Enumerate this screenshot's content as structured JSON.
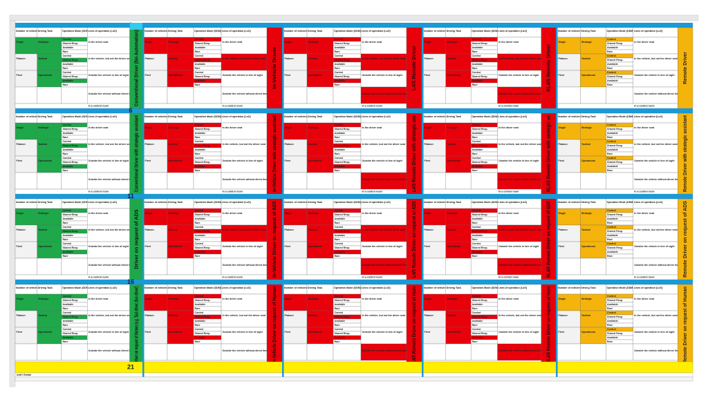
{
  "sheet": {
    "headers": [
      "Number of vehicles",
      "Driving Task",
      "Operation Mode (DDM)",
      "Lines of operation (LoO)"
    ],
    "vehicles": [
      "Single",
      "Platoon",
      "Fleet"
    ],
    "tasks": [
      "Strategic",
      "Tactical",
      "Operational"
    ],
    "modes": [
      "Control",
      "Shared Resp.",
      "Available",
      "Rare"
    ],
    "lines_of_operation": [
      "In the driver seat",
      "In the vehicle, but not the driver seat",
      "Outside the vehicle in line of sight",
      "Outside the vehicle without direct line of sight",
      "In a control room"
    ],
    "band_numbers": [
      "1",
      "6",
      "11",
      "16",
      "21"
    ],
    "bands": [
      [
        "Conventional Driver (No Automation)",
        "In-Vehicle Driver",
        "L4/5 Remote Driver",
        "RL4/5 Remote Driver",
        "Remote Driver"
      ],
      [
        "Conventional Driver with strategic assistant",
        "In-Vehicle Driver with strategic assistant",
        "L4/5 Remote Driver with strategic ass",
        "RL4/5 Remote Driver with strategic as",
        "Remote Driver with strategic assistant"
      ],
      [
        "Driver on request of ADS",
        "In-Vehicle Driver on request of ADS",
        "L4/5 Remote Driver on request of ADS",
        "RL4/5 Remote Driver on request of ADS",
        "Remote Driver on request of ADS"
      ],
      [
        "Driver on request of Human (e.g. Taxi driver, Bus driver)",
        "In-Vehicle Driver on request of Human",
        "L4/5 Remote Driver on request of Hum",
        "RL4/5 Remote Driver on request of Hum",
        "Remote Driver on request of Human"
      ]
    ],
    "last_row_text": "Add'l Global"
  }
}
